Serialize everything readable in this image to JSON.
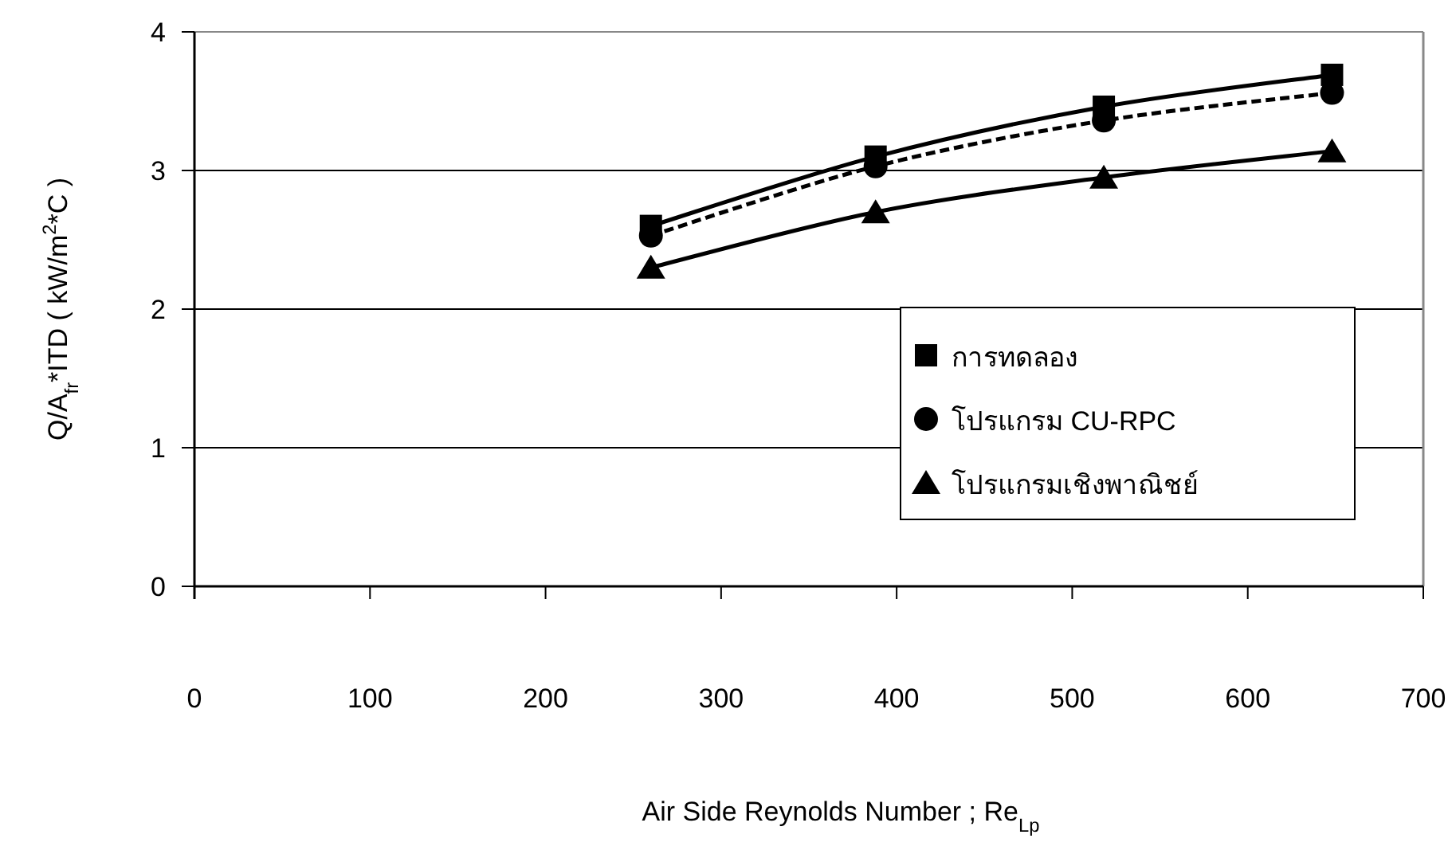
{
  "chart_data": {
    "type": "line",
    "xlabel": "Air Side Reynolds Number ; Re$_{Lp}$",
    "ylabel": "Q/A$_{fr}$*ITD ( kW/m$^{2}$*C )",
    "xlim": [
      0,
      700
    ],
    "xticks": [
      0,
      100,
      200,
      300,
      400,
      500,
      600,
      700
    ],
    "ylim": [
      0,
      4
    ],
    "yticks": [
      0,
      1,
      2,
      3,
      4
    ],
    "grid": "y",
    "legend": "bottom right",
    "x": [
      260,
      388,
      518,
      648
    ],
    "series": [
      {
        "name": "การทดลอง",
        "color": "#000000",
        "marker": "square",
        "line_style": "solid",
        "values": [
          2.6,
          3.1,
          3.46,
          3.69
        ]
      },
      {
        "name": "โปรแกรม CU-RPC",
        "color": "#000000",
        "marker": "circle",
        "line_style": "dashed",
        "values": [
          2.53,
          3.03,
          3.36,
          3.56
        ]
      },
      {
        "name": "โปรแกรมเชิงพาณิชย์",
        "color": "#000000",
        "marker": "triangle",
        "line_style": "solid",
        "values": [
          2.3,
          2.7,
          2.95,
          3.14
        ]
      }
    ]
  }
}
